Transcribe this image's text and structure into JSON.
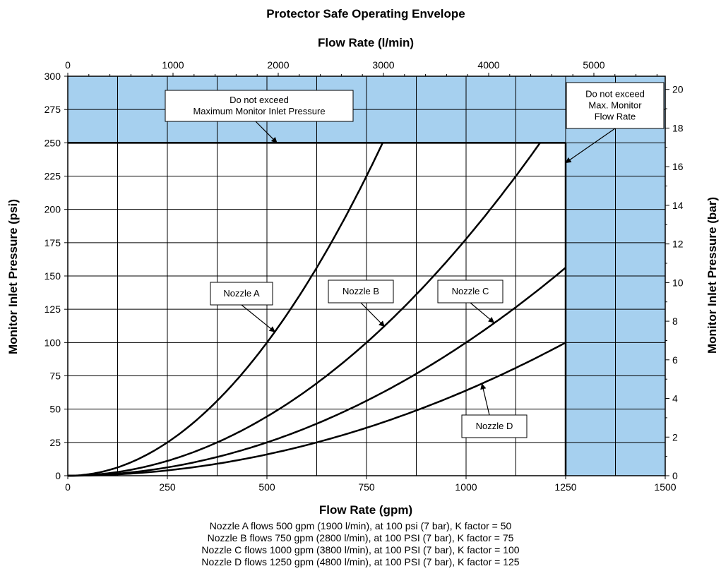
{
  "chart_data": {
    "type": "line",
    "title": "Protector Safe Operating Envelope",
    "xlabel": "Flow Rate (gpm)",
    "ylabel": "Monitor Inlet Pressure (psi)",
    "x2label": "Flow Rate (l/min)",
    "y2label": "Monitor Inlet Pressure (bar)",
    "xlim": [
      0,
      1500
    ],
    "ylim": [
      0,
      300
    ],
    "x2lim": [
      0,
      5678
    ],
    "y2lim": [
      0,
      20.684
    ],
    "grid": true,
    "x_ticks": [
      "0",
      "250",
      "500",
      "750",
      "1000",
      "1250",
      "1500"
    ],
    "y_ticks": [
      "0",
      "25",
      "50",
      "75",
      "100",
      "125",
      "150",
      "175",
      "200",
      "225",
      "250",
      "275",
      "300"
    ],
    "x2_ticks": [
      "0",
      "1000",
      "2000",
      "3000",
      "4000",
      "5000"
    ],
    "y2_ticks": [
      "0",
      "2",
      "4",
      "6",
      "8",
      "10",
      "12",
      "14",
      "16",
      "18",
      "20"
    ],
    "series": [
      {
        "name": "Nozzle A",
        "k_factor": 50,
        "x": [
          0,
          100,
          200,
          300,
          400,
          500,
          600,
          700,
          791
        ],
        "y": [
          0,
          4,
          16,
          36,
          64,
          100,
          144,
          196,
          250
        ]
      },
      {
        "name": "Nozzle B",
        "k_factor": 75,
        "x": [
          0,
          150,
          300,
          450,
          600,
          750,
          900,
          1050,
          1186
        ],
        "y": [
          0,
          4,
          16,
          36,
          64,
          100,
          144,
          196,
          250
        ]
      },
      {
        "name": "Nozzle C",
        "k_factor": 100,
        "x": [
          0,
          200,
          400,
          600,
          800,
          1000,
          1250
        ],
        "y": [
          0,
          4,
          16,
          36,
          64,
          100,
          156.25
        ]
      },
      {
        "name": "Nozzle D",
        "k_factor": 125,
        "x": [
          0,
          250,
          500,
          750,
          1000,
          1250
        ],
        "y": [
          0,
          4,
          16,
          36,
          64,
          100
        ]
      }
    ],
    "limits": {
      "max_pressure_psi": 250,
      "max_flow_gpm": 1250,
      "shade_color": "#a6d0ef"
    },
    "annotations": [
      {
        "lines": [
          "Do not exceed",
          "Maximum Monitor Inlet Pressure"
        ],
        "target_x": 525,
        "target_y": 250
      },
      {
        "lines": [
          "Do not exceed",
          "Max. Monitor",
          "Flow Rate"
        ],
        "target_x": 1250,
        "target_y": 235
      },
      {
        "lines": [
          "Nozzle A"
        ],
        "target_x": 520,
        "target_y": 108
      },
      {
        "lines": [
          "Nozzle B"
        ],
        "target_x": 795,
        "target_y": 112
      },
      {
        "lines": [
          "Nozzle C"
        ],
        "target_x": 1070,
        "target_y": 115
      },
      {
        "lines": [
          "Nozzle D"
        ],
        "target_x": 1040,
        "target_y": 69
      }
    ]
  },
  "notes": [
    "Nozzle A flows 500 gpm (1900 l/min), at 100 psi (7 bar), K factor = 50",
    "Nozzle B flows 750 gpm (2800 l/min), at 100 PSI (7 bar), K factor = 75",
    "Nozzle C flows 1000 gpm (3800 l/min), at 100 PSI (7 bar), K factor = 100",
    "Nozzle D flows 1250 gpm (4800 l/min), at 100 PSI (7 bar), K factor = 125"
  ]
}
